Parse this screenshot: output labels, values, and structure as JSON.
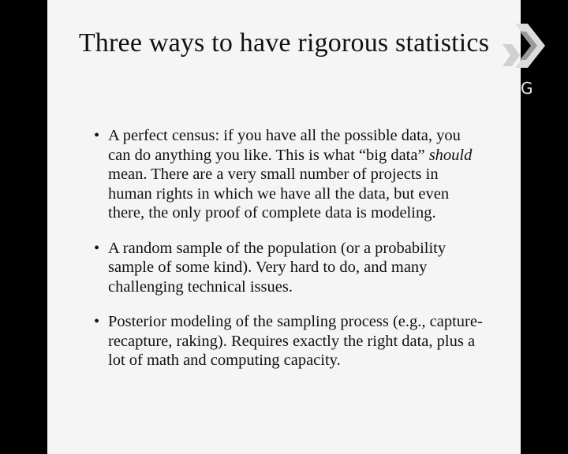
{
  "slide": {
    "title": "Three ways to have rigorous statistics",
    "bullets": [
      {
        "before": "A perfect census: if you have all the possible data, you can do anything you like. This is what “big data” ",
        "emphasis": "should",
        "after": " mean. There are a very small number of projects in human rights in which we have all the data, but even there, the only proof of complete data is modeling."
      },
      {
        "before": "A random sample of the population (or a probability sample of some kind). Very hard to do, and many challenging technical issues.",
        "emphasis": "",
        "after": ""
      },
      {
        "before": "Posterior modeling of the sampling process (e.g., capture-recapture, raking). Requires exactly the right data, plus a lot of math and computing capacity.",
        "emphasis": "",
        "after": ""
      }
    ]
  },
  "overlay": {
    "logo_icon": "broadcaster-logo-icon",
    "logo_letter": "G"
  }
}
